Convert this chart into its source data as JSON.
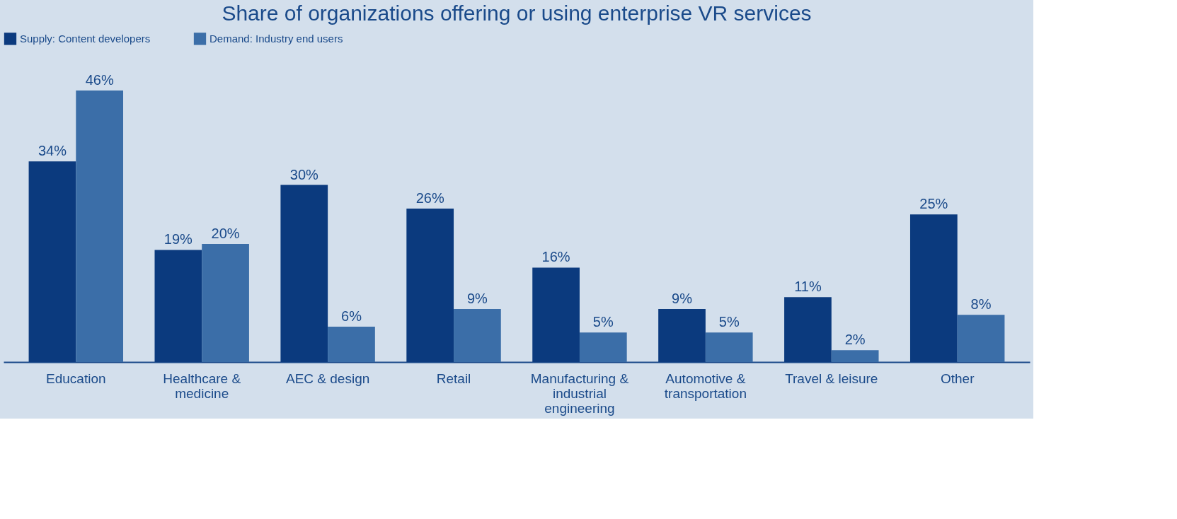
{
  "chart_data": {
    "type": "bar",
    "title": "Share of organizations offering or using enterprise VR services",
    "categories": [
      "Education",
      "Healthcare & medicine",
      "AEC & design",
      "Retail",
      "Manufacturing & industrial engineering",
      "Automotive & transportation",
      "Travel & leisure",
      "Other"
    ],
    "series": [
      {
        "name": "Supply: Content developers",
        "color": "#0b3a7e",
        "values": [
          34,
          19,
          30,
          26,
          16,
          9,
          11,
          25
        ],
        "value_labels": [
          "34%",
          "19%",
          "30%",
          "26%",
          "16%",
          "9%",
          "11%",
          "25%"
        ]
      },
      {
        "name": "Demand: Industry end users",
        "color": "#3b6ea8",
        "values": [
          46,
          20,
          6,
          9,
          5,
          5,
          2,
          8
        ],
        "value_labels": [
          "46%",
          "20%",
          "6%",
          "9%",
          "5%",
          "5%",
          "2%",
          "8%"
        ]
      }
    ],
    "legend": "top",
    "grid": false
  }
}
